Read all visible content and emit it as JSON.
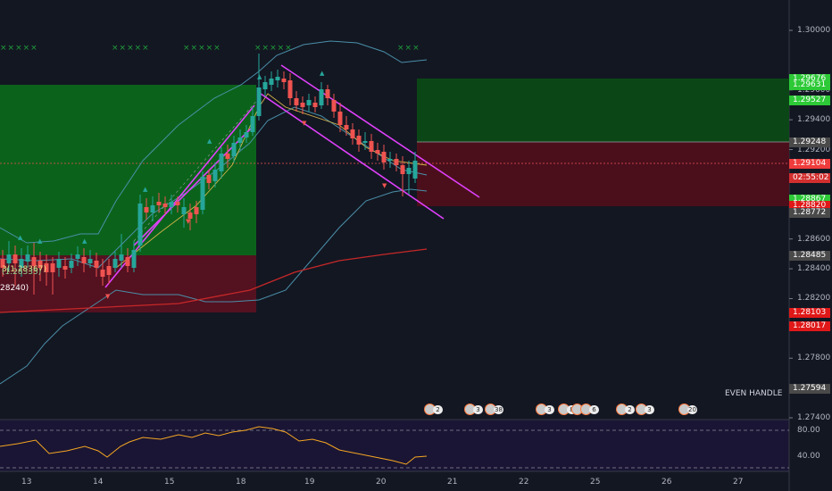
{
  "price_axis": {
    "ticks": [
      "1.30000",
      "1.29600",
      "1.29400",
      "1.29200",
      "1.28600",
      "1.28400",
      "1.28200",
      "1.27800",
      "1.27400"
    ],
    "tick_values": [
      1.3,
      1.296,
      1.294,
      1.292,
      1.286,
      1.284,
      1.282,
      1.278,
      1.274
    ]
  },
  "price_labels": [
    {
      "text": "1.29676",
      "value": 1.29676,
      "color": "#2dc937"
    },
    {
      "text": "1.29631",
      "value": 1.29631,
      "color": "#2dc937"
    },
    {
      "text": "1.29527",
      "value": 1.29527,
      "color": "#2dc937"
    },
    {
      "text": "1.29248",
      "value": 1.29248,
      "color": "#4a4a4a"
    },
    {
      "text": "1.29104",
      "value": 1.29104,
      "color": "#ef3c3c"
    },
    {
      "text": "02:55:02",
      "value": 1.2901,
      "color": "#d32f2f"
    },
    {
      "text": "1.28867",
      "value": 1.28867,
      "color": "#2dc937"
    },
    {
      "text": "1.28820",
      "value": 1.2882,
      "color": "#e01818"
    },
    {
      "text": "1.28772",
      "value": 1.28772,
      "color": "#4a4a4a"
    },
    {
      "text": "1.28485",
      "value": 1.28485,
      "color": "#4a4a4a"
    },
    {
      "text": "1.28103",
      "value": 1.28103,
      "color": "#e01818"
    },
    {
      "text": "1.28017",
      "value": 1.28017,
      "color": "#e01818"
    },
    {
      "text": "1.27594",
      "value": 1.27594,
      "color": "#4a4a4a"
    }
  ],
  "rsi_axis": {
    "ticks": [
      "80.00",
      "40.00"
    ]
  },
  "time_axis": {
    "labels": [
      "13",
      "14",
      "15",
      "18",
      "19",
      "20",
      "21",
      "22",
      "25",
      "26",
      "27"
    ]
  },
  "left_labels": {
    "ma_label_1": "3(1.28367)",
    "ma_label_2": "(1.28335)",
    "ma_label_3": "28240)"
  },
  "annotation": {
    "even_handle": "EVEN HANDLE"
  },
  "events": [
    {
      "count": "2"
    },
    {
      "count": "3"
    },
    {
      "count": "38"
    },
    {
      "count": "3"
    },
    {
      "count": "8"
    },
    {
      "count": "2"
    },
    {
      "count": "6"
    },
    {
      "count": "2"
    },
    {
      "count": "3"
    },
    {
      "count": "20"
    }
  ],
  "marker_row": [
    "×××××",
    "×××××",
    "×××××",
    "×××××",
    "×××"
  ],
  "colors": {
    "background": "#131722",
    "bull": "#26a69a",
    "bear": "#ef5350",
    "buy_zone": "#0b6b1b",
    "sell_zone": "#5c1120",
    "channel": "#e040fb",
    "rsi": "#f5a623"
  },
  "chart_data": {
    "type": "candlestick",
    "title": "",
    "note": "Candlestick chart with Bollinger bands, descending channel, RSI subpanel; axis values shown are price levels",
    "price_range": [
      1.274,
      1.301
    ],
    "rsi_levels": [
      80,
      40
    ]
  }
}
